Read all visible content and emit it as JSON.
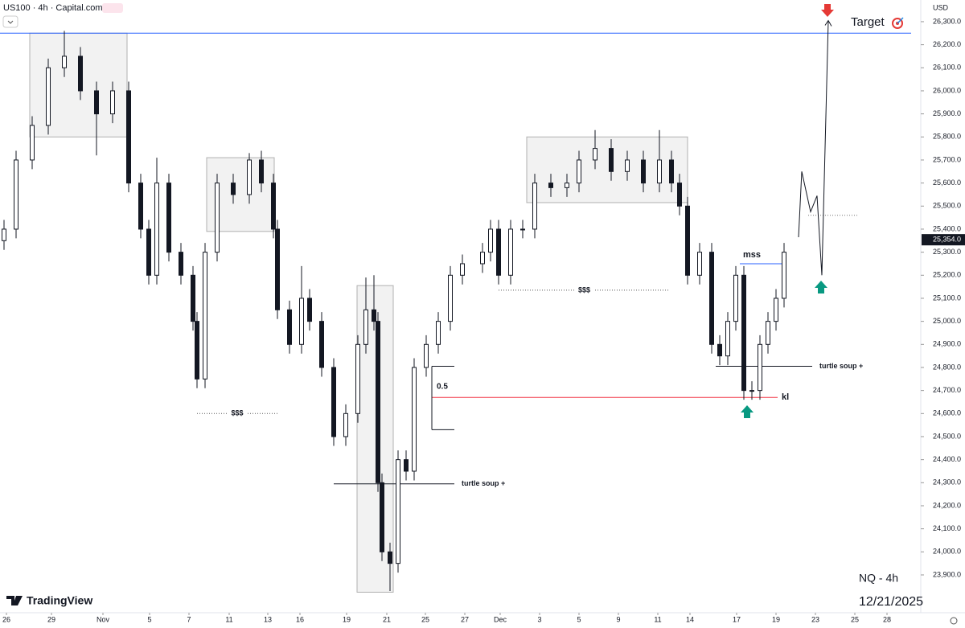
{
  "header": {
    "symbol": "US100 · 4h · Capital.com",
    "currency": "USD"
  },
  "chart_data": {
    "type": "candlestick",
    "x": [
      5,
      20,
      40,
      60,
      80,
      100,
      120,
      140,
      160,
      175,
      185,
      195,
      210,
      225,
      240,
      245,
      255,
      270,
      290,
      310,
      325,
      340,
      345,
      360,
      375,
      385,
      400,
      415,
      430,
      445,
      455,
      465,
      470,
      475,
      485,
      495,
      505,
      515,
      530,
      545,
      560,
      575,
      600,
      610,
      620,
      635,
      650,
      665,
      685,
      705,
      720,
      740,
      760,
      780,
      800,
      820,
      835,
      845,
      855,
      870,
      885,
      895,
      905,
      915,
      925,
      935,
      945,
      955,
      965,
      975
    ],
    "open": [
      25350,
      25400,
      25700,
      25850,
      26100,
      26150,
      26000,
      25900,
      26000,
      25600,
      25400,
      25200,
      25600,
      25300,
      25200,
      25000,
      24750,
      25300,
      25600,
      25550,
      25700,
      25600,
      25400,
      25050,
      24900,
      25100,
      25000,
      24800,
      24500,
      24600,
      24900,
      25050,
      25000,
      24300,
      24000,
      23950,
      24400,
      24350,
      24800,
      24900,
      25000,
      25200,
      25250,
      25300,
      25400,
      25200,
      25400,
      25400,
      25600,
      25580,
      25600,
      25700,
      25750,
      25650,
      25700,
      25600,
      25700,
      25600,
      25500,
      25200,
      25300,
      24900,
      24850,
      25000,
      25200,
      24700,
      24700,
      24900,
      25000,
      25100
    ],
    "high": [
      25440,
      25740,
      25890,
      26140,
      26260,
      26190,
      26040,
      26040,
      26040,
      25640,
      25440,
      25710,
      25640,
      25340,
      25240,
      25040,
      25340,
      25640,
      25640,
      25730,
      25740,
      25640,
      25440,
      25090,
      25240,
      25140,
      25040,
      24840,
      24640,
      24940,
      25190,
      25200,
      25040,
      24340,
      24040,
      24440,
      24440,
      24840,
      24940,
      25040,
      25240,
      25290,
      25340,
      25440,
      25440,
      25440,
      25440,
      25640,
      25640,
      25640,
      25740,
      25830,
      25790,
      25740,
      25740,
      25830,
      25740,
      25640,
      25540,
      25340,
      25340,
      24940,
      25040,
      25240,
      25240,
      24740,
      24940,
      25040,
      25140,
      25340
    ],
    "low": [
      25310,
      25360,
      25660,
      25810,
      26060,
      25960,
      25720,
      25860,
      25560,
      25360,
      25160,
      25160,
      25260,
      25160,
      24960,
      24710,
      24710,
      25260,
      25510,
      25510,
      25560,
      25360,
      25010,
      24860,
      24860,
      24960,
      24760,
      24460,
      24460,
      24560,
      24860,
      24960,
      24260,
      23960,
      23830,
      23910,
      24310,
      24310,
      24760,
      24860,
      24960,
      25160,
      25210,
      25260,
      25160,
      25160,
      25360,
      25360,
      25540,
      25540,
      25560,
      25660,
      25610,
      25610,
      25560,
      25560,
      25560,
      25460,
      25160,
      25160,
      24860,
      24810,
      24810,
      24960,
      24660,
      24660,
      24660,
      24860,
      24960,
      25060
    ],
    "close": [
      25400,
      25700,
      25850,
      26100,
      26150,
      26000,
      25900,
      26000,
      25600,
      25400,
      25200,
      25600,
      25300,
      25200,
      25000,
      24750,
      25300,
      25600,
      25550,
      25700,
      25600,
      25400,
      25050,
      24900,
      25100,
      25000,
      24800,
      24500,
      24600,
      24900,
      25050,
      25000,
      24300,
      24000,
      23950,
      24400,
      24350,
      24800,
      24900,
      25000,
      25200,
      25250,
      25300,
      25400,
      25200,
      25400,
      25400,
      25600,
      25580,
      25600,
      25700,
      25750,
      25650,
      25700,
      25600,
      25700,
      25600,
      25500,
      25200,
      25300,
      24900,
      24850,
      25000,
      25200,
      24700,
      24700,
      24900,
      25000,
      25100,
      25300
    ],
    "xlim": [
      0,
      1145
    ],
    "ylim": [
      23736,
      26394
    ],
    "yticks": [
      {
        "value": 26300,
        "label": "26,300.0"
      },
      {
        "value": 26200,
        "label": "26,200.0"
      },
      {
        "value": 26100,
        "label": "26,100.0"
      },
      {
        "value": 26000,
        "label": "26,000.0"
      },
      {
        "value": 25900,
        "label": "25,900.0"
      },
      {
        "value": 25800,
        "label": "25,800.0"
      },
      {
        "value": 25700,
        "label": "25,700.0"
      },
      {
        "value": 25600,
        "label": "25,600.0"
      },
      {
        "value": 25500,
        "label": "25,500.0"
      },
      {
        "value": 25400,
        "label": "25,400.0"
      },
      {
        "value": 25300,
        "label": "25,300.0"
      },
      {
        "value": 25200,
        "label": "25,200.0"
      },
      {
        "value": 25100,
        "label": "25,100.0"
      },
      {
        "value": 25000,
        "label": "25,000.0"
      },
      {
        "value": 24900,
        "label": "24,900.0"
      },
      {
        "value": 24800,
        "label": "24,800.0"
      },
      {
        "value": 24700,
        "label": "24,700.0"
      },
      {
        "value": 24600,
        "label": "24,600.0"
      },
      {
        "value": 24500,
        "label": "24,500.0"
      },
      {
        "value": 24400,
        "label": "24,400.0"
      },
      {
        "value": 24300,
        "label": "24,300.0"
      },
      {
        "value": 24200,
        "label": "24,200.0"
      },
      {
        "value": 24100,
        "label": "24,100.0"
      },
      {
        "value": 24000,
        "label": "24,000.0"
      },
      {
        "value": 23900,
        "label": "23,900.0"
      }
    ],
    "xticks": [
      {
        "value": 8,
        "label": "26"
      },
      {
        "value": 64,
        "label": "29"
      },
      {
        "value": 128,
        "label": "Nov"
      },
      {
        "value": 186,
        "label": "5"
      },
      {
        "value": 235,
        "label": "7"
      },
      {
        "value": 285,
        "label": "11"
      },
      {
        "value": 333,
        "label": "13"
      },
      {
        "value": 373,
        "label": "16"
      },
      {
        "value": 431,
        "label": "19"
      },
      {
        "value": 481,
        "label": "21"
      },
      {
        "value": 529,
        "label": "25"
      },
      {
        "value": 578,
        "label": "27"
      },
      {
        "value": 622,
        "label": "Dec"
      },
      {
        "value": 671,
        "label": "3"
      },
      {
        "value": 720,
        "label": "5"
      },
      {
        "value": 769,
        "label": "9"
      },
      {
        "value": 818,
        "label": "11"
      },
      {
        "value": 858,
        "label": "14"
      },
      {
        "value": 916,
        "label": "17"
      },
      {
        "value": 965,
        "label": "19"
      },
      {
        "value": 1014,
        "label": "23"
      },
      {
        "value": 1063,
        "label": "25"
      },
      {
        "value": 1103,
        "label": "28"
      }
    ],
    "zones": [
      {
        "x": [
          37,
          158
        ],
        "prices": [
          26250,
          25800
        ]
      },
      {
        "x": [
          257,
          341
        ],
        "prices": [
          25710,
          25390
        ]
      },
      {
        "x": [
          444,
          489
        ],
        "prices": [
          25155,
          23825
        ]
      },
      {
        "x": [
          655,
          855
        ],
        "prices": [
          25800,
          25515
        ]
      }
    ],
    "target": {
      "label": "Target",
      "price": 26250,
      "x": [
        0,
        1133
      ]
    },
    "liquidity": [
      {
        "label": "$$$",
        "price": 24600,
        "x": [
          245,
          345
        ]
      },
      {
        "label": "$$$",
        "price": 25135,
        "x": [
          620,
          833
        ]
      }
    ],
    "turtle_soup": [
      {
        "label": "turtle soup +",
        "price": 24295,
        "x": [
          415,
          565
        ]
      },
      {
        "label": "turtle soup +",
        "price": 24805,
        "x": [
          890,
          1010
        ]
      }
    ],
    "key_level": {
      "label": "kl",
      "price": 24670,
      "x": [
        537,
        967
      ]
    },
    "fib": {
      "label": "0.5",
      "x": [
        537,
        565
      ],
      "prices": [
        24805,
        24530
      ]
    },
    "mss": {
      "label": "mss",
      "price": 25250,
      "x": [
        920,
        972
      ]
    },
    "projection": {
      "x": [
        993,
        997,
        1008,
        1016,
        1022,
        1030
      ],
      "prices": [
        25365,
        25650,
        25475,
        25545,
        25200,
        26305
      ]
    },
    "projection_level": {
      "price": 25460,
      "x": [
        1005,
        1066
      ]
    },
    "last_price": {
      "value": 25354,
      "label": "25,354.0"
    }
  },
  "watermark": {
    "title": "NQ - 4h",
    "date": "12/21/2025",
    "brand": "TradingView"
  }
}
